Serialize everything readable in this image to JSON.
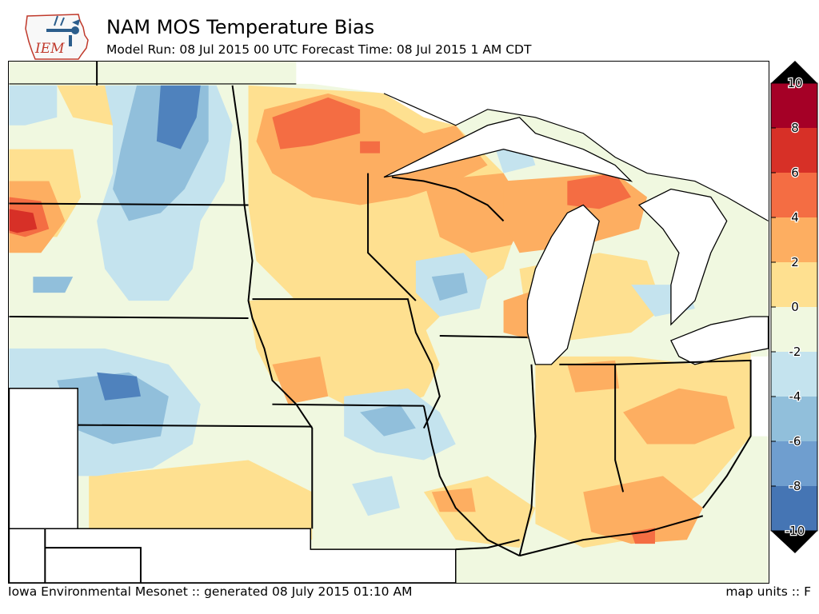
{
  "header": {
    "logo_text": "IEM",
    "title": "NAM MOS Temperature Bias",
    "subtitle": "Model Run: 08 Jul 2015 00 UTC Forecast Time: 08 Jul 2015 1 AM CDT"
  },
  "legend": {
    "ticks": [
      "10",
      "8",
      "6",
      "4",
      "2",
      "0",
      "-2",
      "-4",
      "-6",
      "-8",
      "-10"
    ],
    "colors": [
      "#a50026",
      "#d73027",
      "#f46d43",
      "#fdae61",
      "#fee090",
      "#f0f8e0",
      "#c4e3ee",
      "#91bfdb",
      "#6f9ecf",
      "#4575b4",
      "#313695"
    ]
  },
  "footer": {
    "credit": "Iowa Environmental Mesonet :: generated 08 July 2015 01:10 AM",
    "units": "map units :: F"
  }
}
